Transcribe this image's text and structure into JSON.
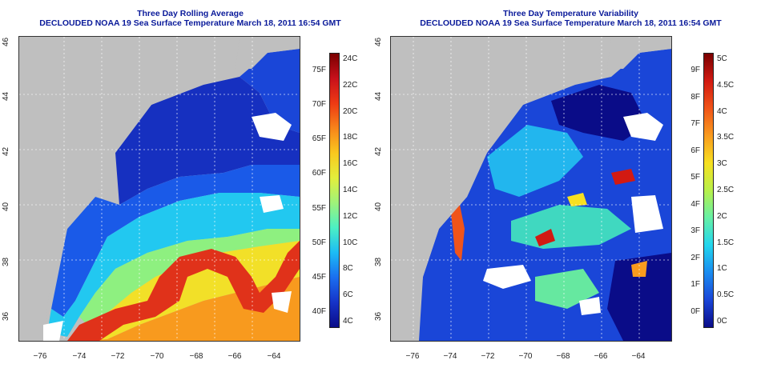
{
  "left_panel": {
    "title_line1": "Three Day Rolling Average",
    "title_line2": "DECLOUDED NOAA 19 Sea Surface Temperature March 18, 2011 16:54 GMT",
    "scale_f": [
      "75F",
      "70F",
      "65F",
      "60F",
      "55F",
      "50F",
      "45F",
      "40F"
    ],
    "scale_c": [
      "24C",
      "22C",
      "20C",
      "18C",
      "16C",
      "14C",
      "12C",
      "10C",
      "8C",
      "6C",
      "4C"
    ],
    "gradient": [
      "#7a0000",
      "#c8101b",
      "#ee3a13",
      "#f7841a",
      "#f9c81e",
      "#e3ee3c",
      "#9ff37a",
      "#4cf0c4",
      "#1cbcf5",
      "#1a6ef0",
      "#1633c8",
      "#0a0c88"
    ]
  },
  "right_panel": {
    "title_line1": "Three Day Temperature Variability",
    "title_line2": "DECLOUDED NOAA 19 Sea Surface Temperature March 18, 2011 16:54 GMT",
    "scale_f": [
      "9F",
      "8F",
      "7F",
      "6F",
      "5F",
      "4F",
      "3F",
      "2F",
      "1F",
      "0F"
    ],
    "scale_c": [
      "5C",
      "4.5C",
      "4C",
      "3.5C",
      "3C",
      "2.5C",
      "2C",
      "1.5C",
      "1C",
      "0.5C",
      "0C"
    ],
    "gradient": [
      "#7a0000",
      "#d21a12",
      "#f05418",
      "#f99b1e",
      "#f7e020",
      "#b8f04a",
      "#66f0a6",
      "#22d6ee",
      "#1a8cf0",
      "#1a46d8",
      "#0a0c88"
    ]
  },
  "axes": {
    "lat_ticks": [
      "46",
      "44",
      "42",
      "40",
      "38",
      "36"
    ],
    "lon_ticks": [
      "−76",
      "−74",
      "−72",
      "−70",
      "−68",
      "−66",
      "−64"
    ]
  }
}
